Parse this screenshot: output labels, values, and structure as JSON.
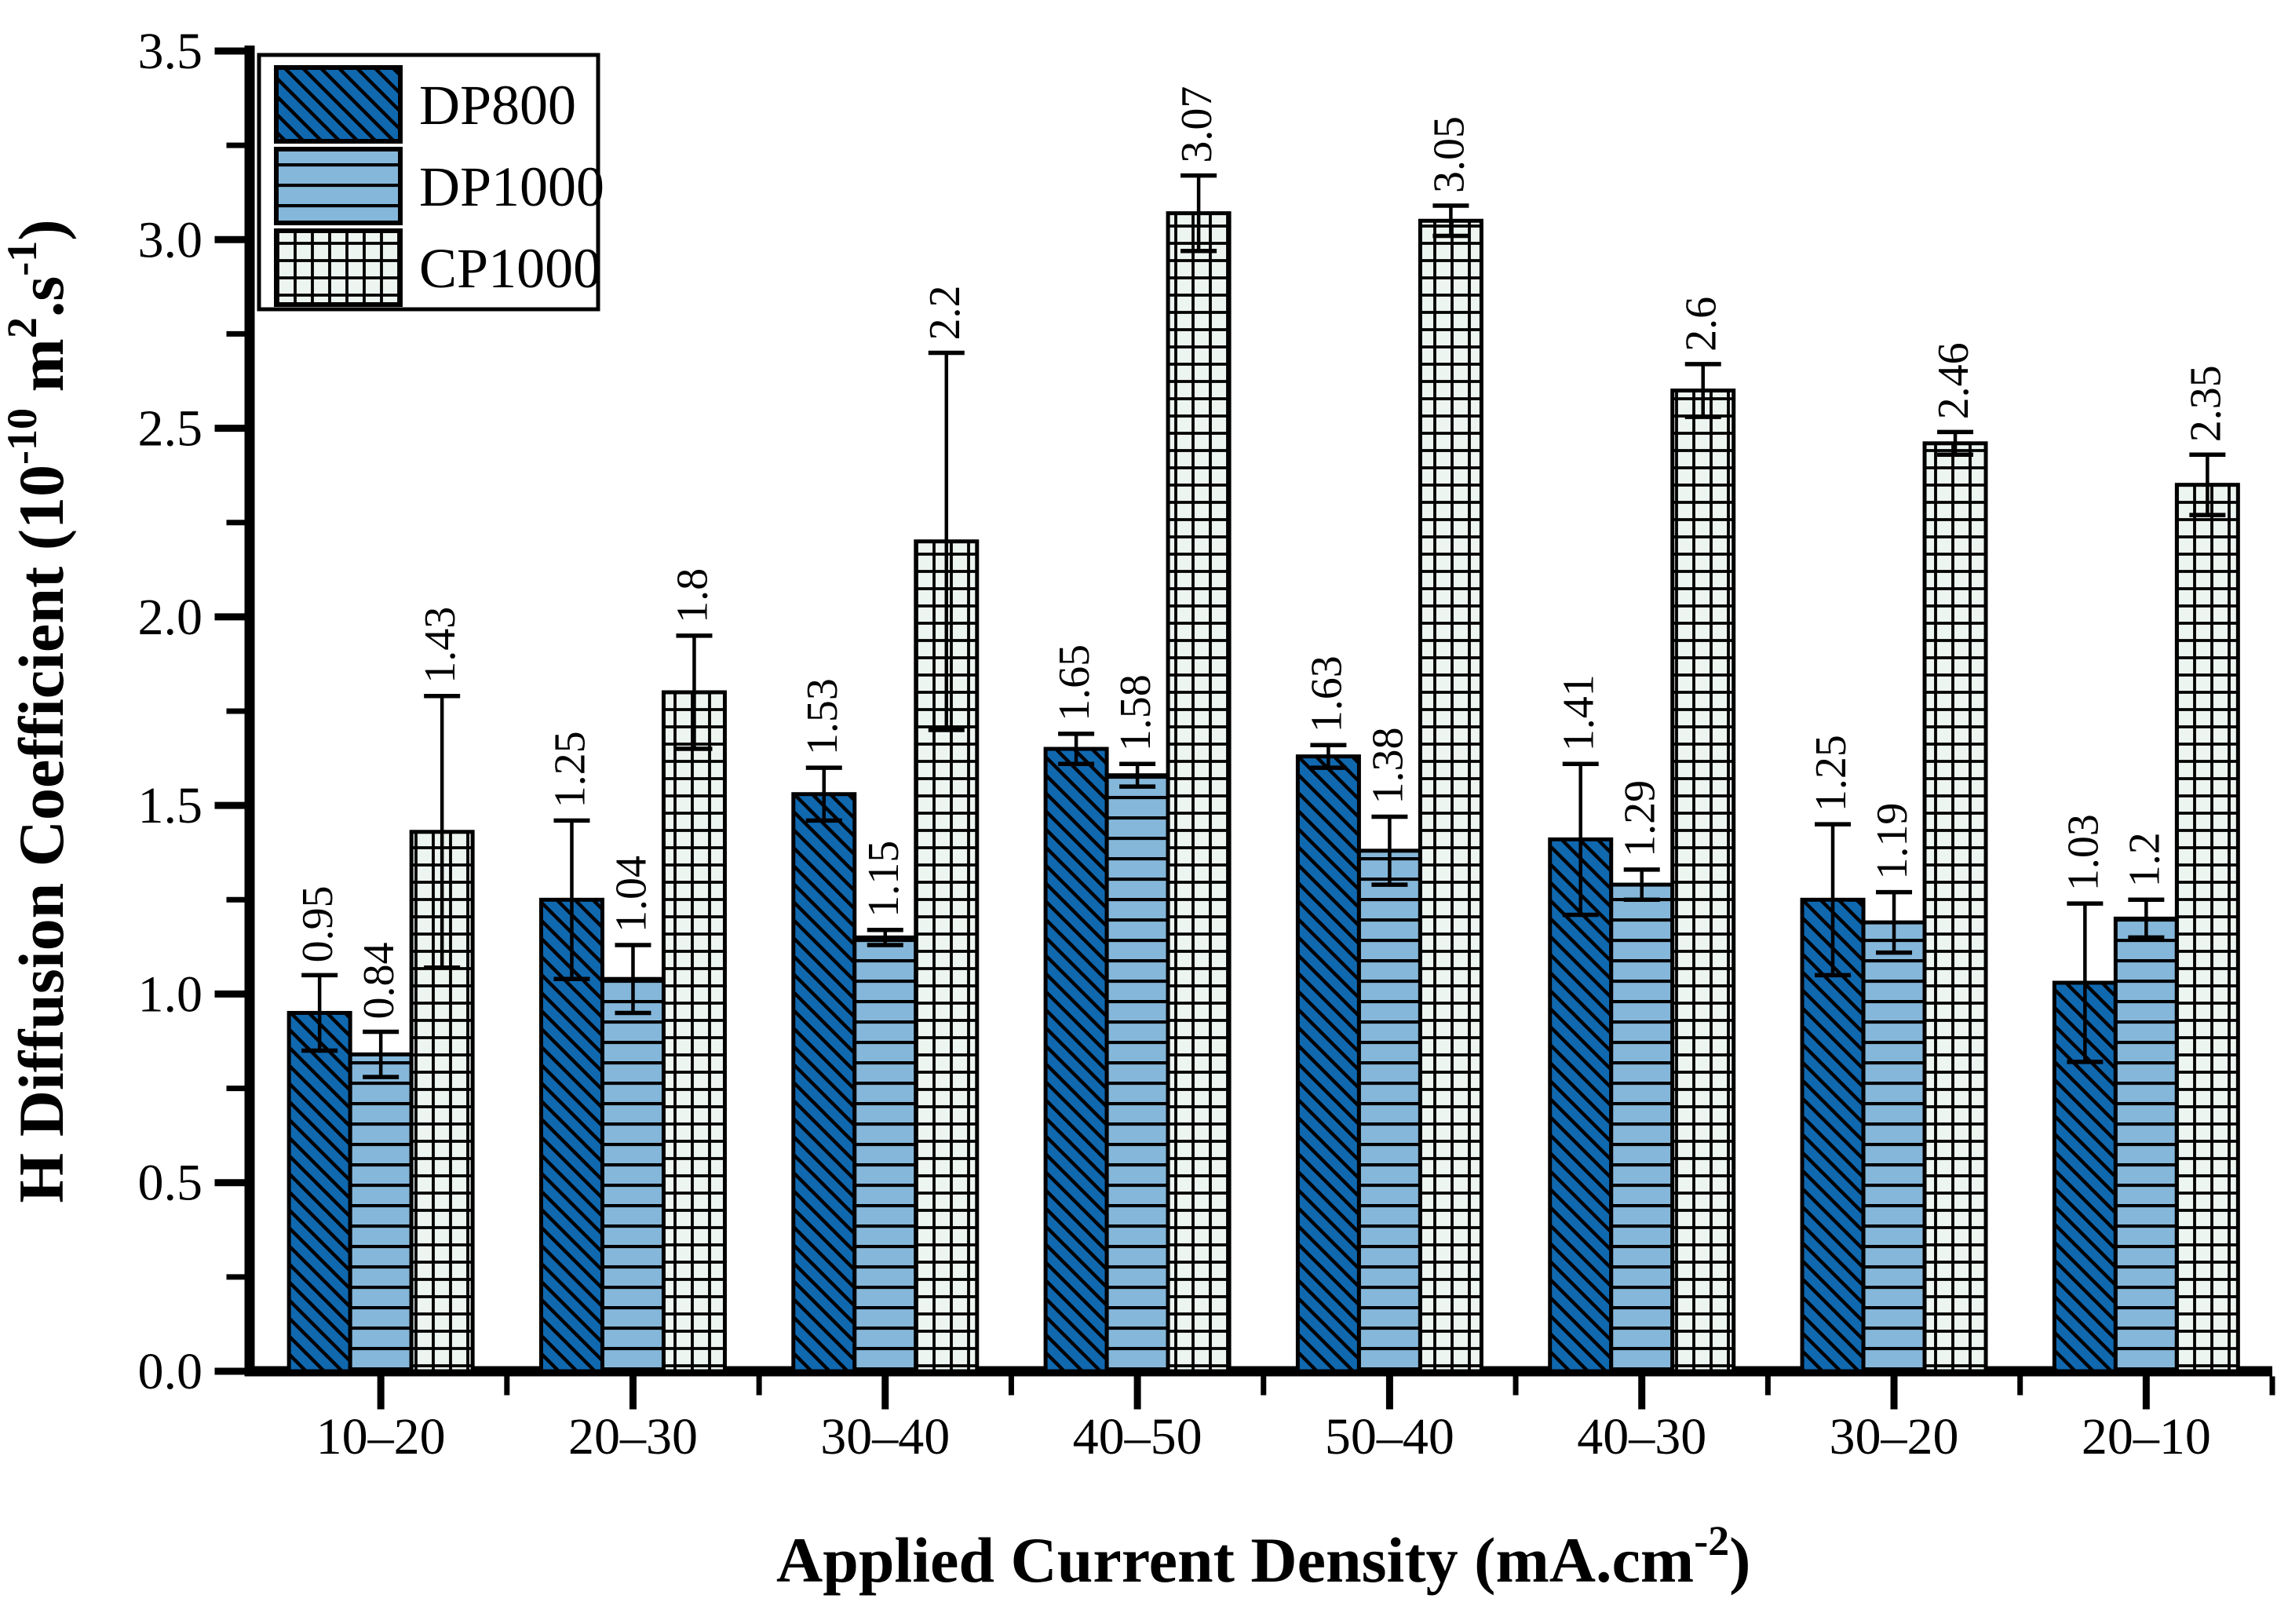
{
  "figure": {
    "background": "#ffffff",
    "axis_color": "#000000",
    "bar_outline_color": "#000000",
    "error_bar_color": "#000000"
  },
  "chart_data": {
    "type": "bar",
    "title": "",
    "xlabel": "Applied Current Density (mA.cm-2)",
    "ylabel": "H Diffusion Coefficient (10-10 m2.s-1)",
    "xlabel_parts": [
      {
        "t": "Applied Current Density (mA.cm"
      },
      {
        "t": "-2",
        "sup": true
      },
      {
        "t": ")"
      }
    ],
    "ylabel_parts": [
      {
        "t": "H Diffusion Coefficient (10"
      },
      {
        "t": "-10",
        "sup": true
      },
      {
        "t": " m"
      },
      {
        "t": "2",
        "sup": true
      },
      {
        "t": ".s"
      },
      {
        "t": "-1",
        "sup": true
      },
      {
        "t": ")"
      }
    ],
    "categories": [
      "10–20",
      "20–30",
      "30–40",
      "40–50",
      "50–40",
      "40–30",
      "30–20",
      "20–10"
    ],
    "series": [
      {
        "name": "DP800",
        "color": "#1068af",
        "hatch": "diagonal",
        "values": [
          0.95,
          1.25,
          1.53,
          1.65,
          1.63,
          1.41,
          1.25,
          1.03
        ],
        "errors": [
          0.1,
          0.21,
          0.07,
          0.04,
          0.03,
          0.2,
          0.2,
          0.21
        ]
      },
      {
        "name": "DP1000",
        "color": "#85b7da",
        "hatch": "horizontal",
        "values": [
          0.84,
          1.04,
          1.15,
          1.58,
          1.38,
          1.29,
          1.19,
          1.2
        ],
        "errors": [
          0.06,
          0.09,
          0.02,
          0.03,
          0.09,
          0.04,
          0.08,
          0.05
        ]
      },
      {
        "name": "CP1000",
        "color": "#edf5f0",
        "hatch": "grid",
        "values": [
          1.43,
          1.8,
          2.2,
          3.07,
          3.05,
          2.6,
          2.46,
          2.35
        ],
        "errors": [
          0.36,
          0.15,
          0.5,
          0.1,
          0.04,
          0.07,
          0.03,
          0.08
        ]
      }
    ],
    "value_labels": [
      [
        "0.95",
        "1.25",
        "1.53",
        "1.65",
        "1.63",
        "1.41",
        "1.25",
        "1.03"
      ],
      [
        "0.84",
        "1.04",
        "1.15",
        "1.58",
        "1.38",
        "1.29",
        "1.19",
        "1.2"
      ],
      [
        "1.43",
        "1.8",
        "2.2",
        "3.07",
        "3.05",
        "2.6",
        "2.46",
        "2.35"
      ]
    ],
    "ylim": [
      0,
      3.5
    ],
    "ytick_major_step": 0.5,
    "ytick_minor_step": 0.25,
    "ytick_labels": [
      "0.0",
      "0.5",
      "1.0",
      "1.5",
      "2.0",
      "2.5",
      "3.0",
      "3.5"
    ],
    "grid": false,
    "legend_position": "top-left"
  },
  "legend": {
    "items": [
      {
        "label": "DP800"
      },
      {
        "label": "DP1000"
      },
      {
        "label": "CP1000"
      }
    ]
  }
}
